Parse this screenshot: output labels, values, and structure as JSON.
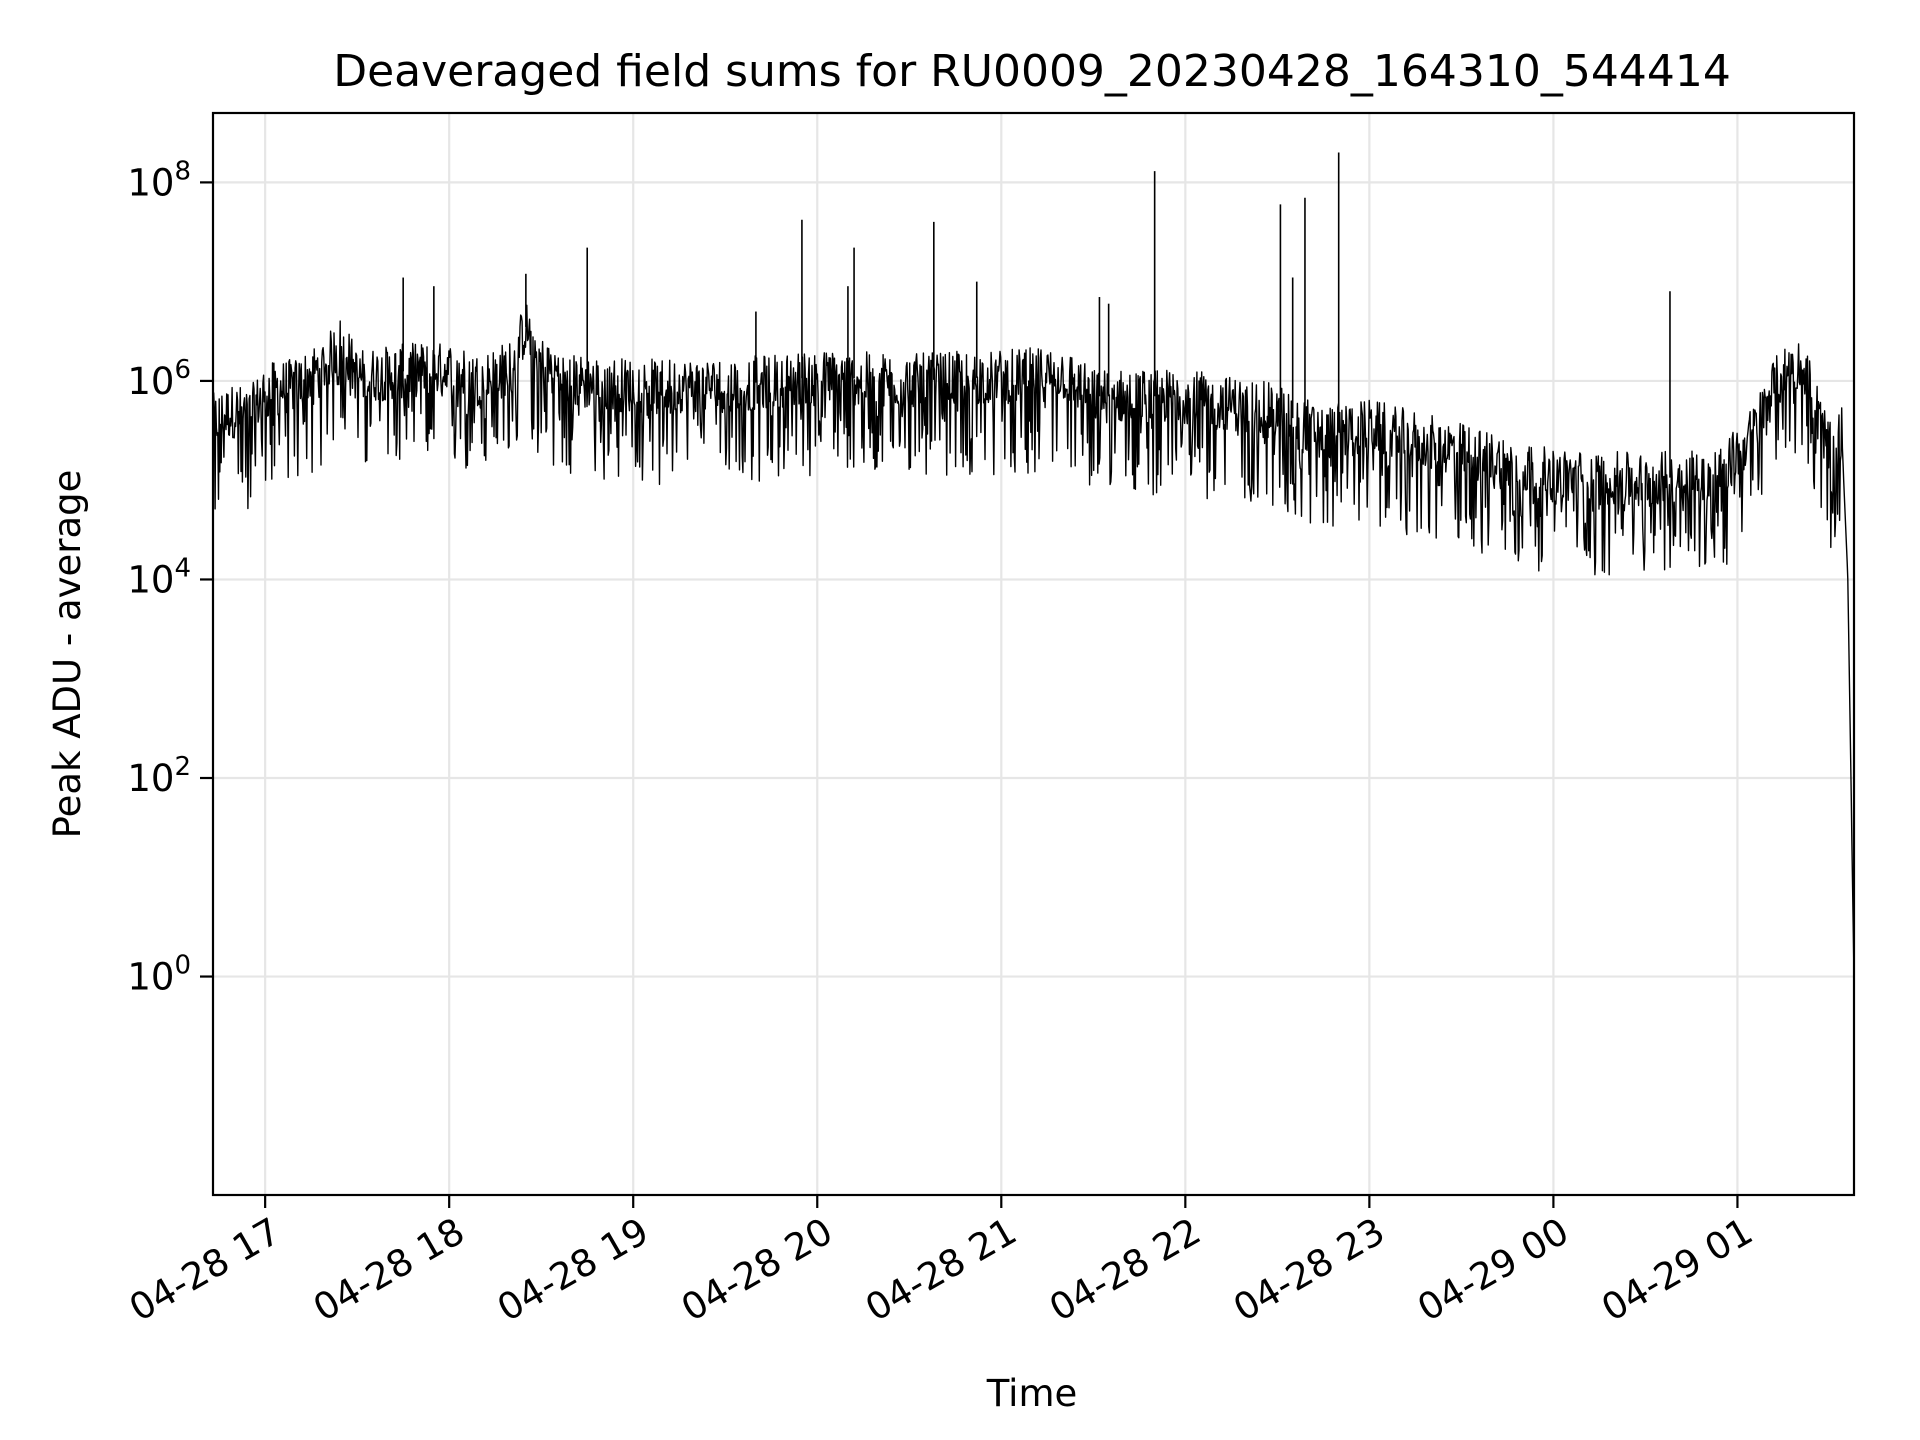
{
  "colors": {
    "series": "#000000",
    "grid": "#e6e6e6",
    "background": "#ffffff"
  },
  "chart_data": {
    "type": "line",
    "title": "Deaveraged field sums for RU0009_20230428_164310_544414",
    "xlabel": "Time",
    "ylabel": "Peak ADU - average",
    "yscale": "log",
    "grid": true,
    "xlim": [
      "2023-04-28 16:43",
      "2023-04-29 01:38"
    ],
    "ylim": [
      0.0063,
      500000000.0
    ],
    "x_ticks": [
      "2023-04-28 17:00",
      "2023-04-28 18:00",
      "2023-04-28 19:00",
      "2023-04-28 20:00",
      "2023-04-28 21:00",
      "2023-04-28 22:00",
      "2023-04-28 23:00",
      "2023-04-29 00:00",
      "2023-04-29 01:00"
    ],
    "x_tick_labels": [
      "04-28 17",
      "04-28 18",
      "04-28 19",
      "04-28 20",
      "04-28 21",
      "04-28 22",
      "04-28 23",
      "04-29 00",
      "04-29 01"
    ],
    "y_ticks": [
      1,
      100,
      10000,
      1000000,
      100000000
    ],
    "y_tick_labels": [
      {
        "base": "10",
        "exp": "0"
      },
      {
        "base": "10",
        "exp": "2"
      },
      {
        "base": "10",
        "exp": "4"
      },
      {
        "base": "10",
        "exp": "6"
      },
      {
        "base": "10",
        "exp": "8"
      }
    ],
    "series": [
      {
        "x": [
          "2023-04-28 16:43",
          "2023-04-28 16:50",
          "2023-04-28 16:55",
          "2023-04-28 17:00",
          "2023-04-28 17:10",
          "2023-04-28 17:20",
          "2023-04-28 17:25",
          "2023-04-28 17:30",
          "2023-04-28 17:40",
          "2023-04-28 17:50",
          "2023-04-28 18:00",
          "2023-04-28 18:10",
          "2023-04-28 18:20",
          "2023-04-28 18:25",
          "2023-04-28 18:30",
          "2023-04-28 18:40",
          "2023-04-28 19:00",
          "2023-04-28 19:30",
          "2023-04-28 20:00",
          "2023-04-28 20:30",
          "2023-04-28 21:00",
          "2023-04-28 21:20",
          "2023-04-28 21:30",
          "2023-04-28 22:00",
          "2023-04-28 22:30",
          "2023-04-28 22:45",
          "2023-04-28 23:00",
          "2023-04-28 23:30",
          "2023-04-29 00:00",
          "2023-04-29 00:30",
          "2023-04-29 00:55",
          "2023-04-29 01:05",
          "2023-04-29 01:12",
          "2023-04-29 01:18",
          "2023-04-29 01:22",
          "2023-04-29 01:30",
          "2023-04-29 01:34",
          "2023-04-29 01:36",
          "2023-04-29 01:38"
        ],
        "y": [
          400000,
          500000,
          450000,
          800000,
          900000,
          1500000,
          2500000,
          1100000,
          1200000,
          1300000,
          1300000,
          1000000,
          1400000,
          3500000,
          1500000,
          1000000,
          900000,
          900000,
          1100000,
          1000000,
          1100000,
          1200000,
          700000,
          700000,
          500000,
          300000,
          350000,
          200000,
          110000,
          100000,
          120000,
          300000,
          900000,
          1500000,
          1300000,
          200000,
          300000,
          10000,
          1
        ]
      }
    ],
    "spikes": [
      {
        "x": "2023-04-28 17:45",
        "y": 11000000
      },
      {
        "x": "2023-04-28 17:55",
        "y": 9000000
      },
      {
        "x": "2023-04-28 18:25",
        "y": 12000000
      },
      {
        "x": "2023-04-28 18:45",
        "y": 22000000
      },
      {
        "x": "2023-04-28 19:40",
        "y": 5000000
      },
      {
        "x": "2023-04-28 19:55",
        "y": 42000000
      },
      {
        "x": "2023-04-28 20:10",
        "y": 9000000
      },
      {
        "x": "2023-04-28 20:12",
        "y": 22000000
      },
      {
        "x": "2023-04-28 20:38",
        "y": 40000000
      },
      {
        "x": "2023-04-28 20:52",
        "y": 10000000
      },
      {
        "x": "2023-04-28 21:32",
        "y": 7000000
      },
      {
        "x": "2023-04-28 21:35",
        "y": 6000000
      },
      {
        "x": "2023-04-28 21:50",
        "y": 130000000
      },
      {
        "x": "2023-04-28 22:31",
        "y": 60000000
      },
      {
        "x": "2023-04-28 22:35",
        "y": 11000000
      },
      {
        "x": "2023-04-28 22:39",
        "y": 70000000
      },
      {
        "x": "2023-04-28 22:50",
        "y": 200000000
      },
      {
        "x": "2023-04-29 00:38",
        "y": 8000000
      }
    ]
  }
}
